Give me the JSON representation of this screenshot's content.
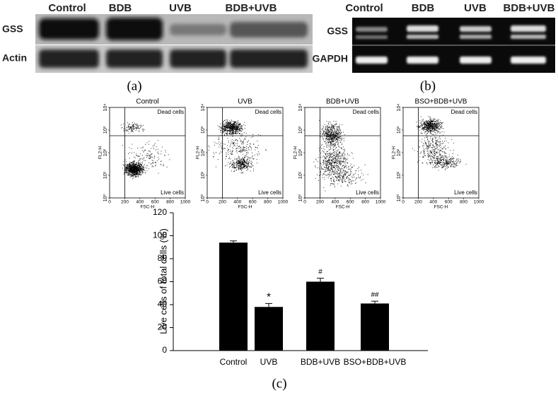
{
  "panel_a": {
    "label": "(a)",
    "columns": [
      "Control",
      "BDB",
      "UVB",
      "BDB+UVB"
    ],
    "rows": [
      "GSS",
      "Actin"
    ]
  },
  "panel_b": {
    "label": "(b)",
    "columns": [
      "Control",
      "BDB",
      "UVB",
      "BDB+UVB"
    ],
    "rows": [
      "GSS",
      "GAPDH"
    ]
  },
  "flow": {
    "titles": [
      "Control",
      "UVB",
      "BDB+UVB",
      "BSO+BDB+UVB"
    ],
    "upper_label": "Dead cells",
    "lower_label": "Live cells",
    "x_axis_label": "FSC-H",
    "y_axis_label": "FL2-H",
    "xlim": [
      0,
      1000
    ],
    "xticks": [
      0,
      200,
      400,
      600,
      800,
      1000
    ],
    "ylim": [
      1,
      10000
    ],
    "yticks": [
      {
        "value": 1,
        "label": "10⁰"
      },
      {
        "value": 10,
        "label": "10¹"
      },
      {
        "value": 100,
        "label": "10²"
      },
      {
        "value": 1000,
        "label": "10³"
      },
      {
        "value": 10000,
        "label": "10⁴"
      }
    ]
  },
  "chart_data": {
    "type": "bar",
    "label": "(c)",
    "y_axis_label": "Live cells of total cells (%)",
    "categories": [
      "Control",
      "UVB",
      "BDB+UVB",
      "BSO+BDB+UVB"
    ],
    "values": [
      94,
      38,
      60,
      41
    ],
    "errors": [
      1.5,
      3,
      3,
      2
    ],
    "color": "#000000",
    "ylim": [
      0,
      120
    ],
    "yticks": [
      0,
      20,
      40,
      60,
      80,
      100,
      120
    ],
    "annotations": [
      {
        "index": 1,
        "text": "*"
      },
      {
        "index": 2,
        "text": "#"
      },
      {
        "index": 3,
        "text": "##"
      }
    ]
  }
}
